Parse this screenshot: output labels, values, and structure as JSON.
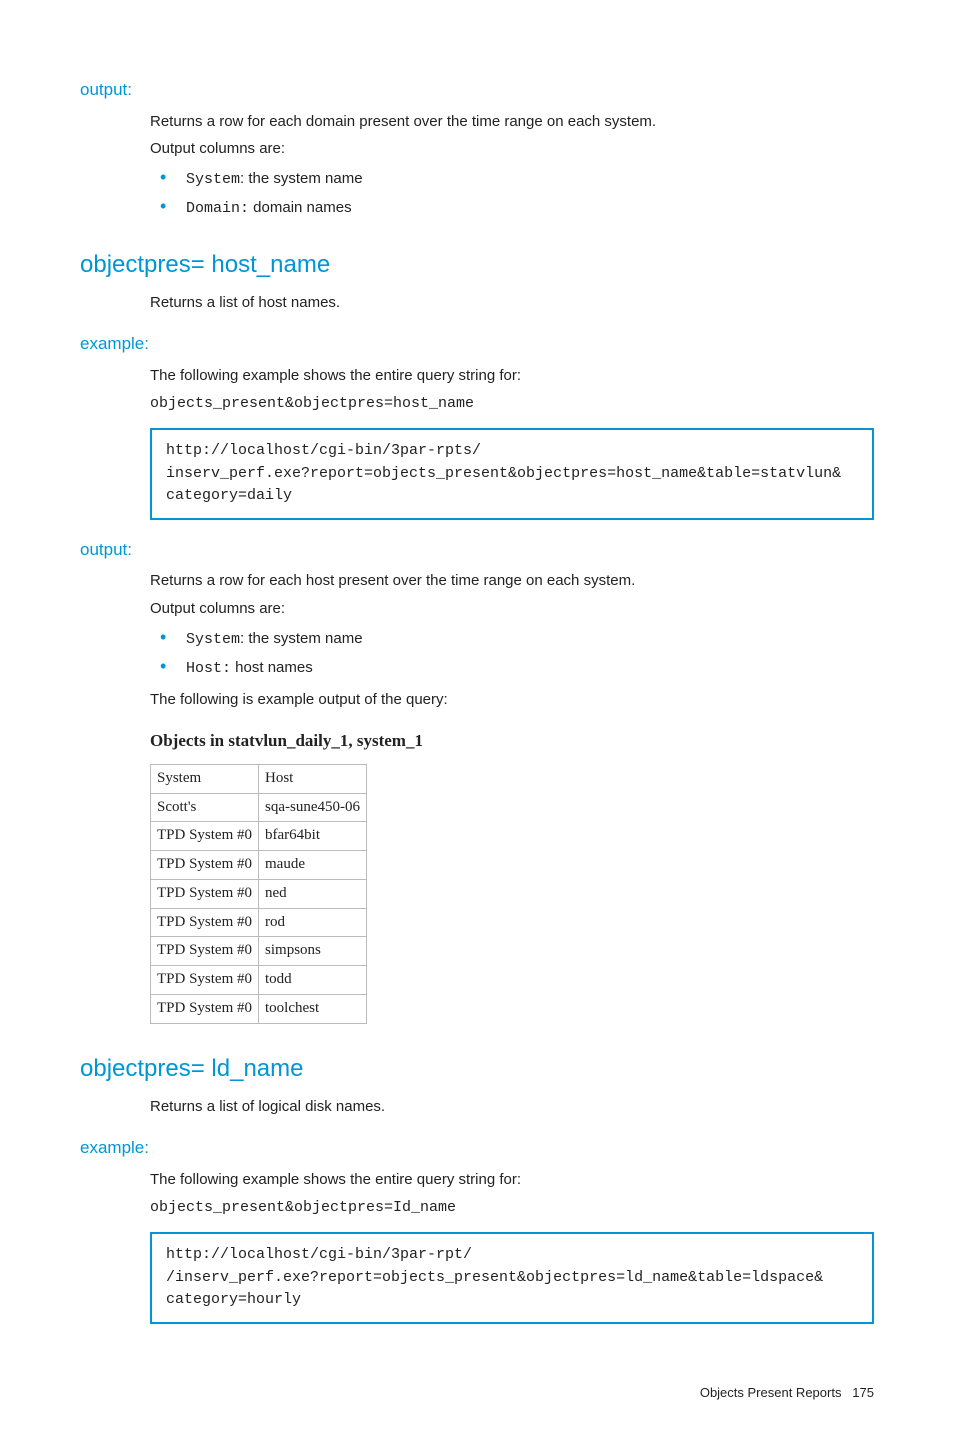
{
  "section1": {
    "label": "output:",
    "desc": "Returns a row for each domain present over the time range on each system.",
    "cols_intro": "Output columns are:",
    "bullets": [
      {
        "code": "System",
        "text": ": the system name"
      },
      {
        "code": "Domain:",
        "text": " domain names"
      }
    ]
  },
  "section2": {
    "heading": "objectpres= host_name",
    "desc": "Returns a list of host names."
  },
  "section3": {
    "label": "example:",
    "desc": "The following example shows the entire query string for:",
    "code_line": "objects_present&objectpres=host_name",
    "code_box": "http://localhost/cgi-bin/3par-rpts/\ninserv_perf.exe?report=objects_present&objectpres=host_name&table=statvlun&\ncategory=daily"
  },
  "section4": {
    "label": "output:",
    "desc": "Returns a row for each host present over the time range on each system.",
    "cols_intro": "Output columns are:",
    "bullets": [
      {
        "code": "System",
        "text": ": the system name"
      },
      {
        "code": "Host:",
        "text": " host names"
      }
    ],
    "after": "The following is example output of the query:",
    "table_title": "Objects in statvlun_daily_1, system_1",
    "columns": [
      "System",
      "Host"
    ],
    "rows": [
      [
        "Scott's",
        "sqa-sune450-06"
      ],
      [
        "TPD System #0",
        "bfar64bit"
      ],
      [
        "TPD System #0",
        "maude"
      ],
      [
        "TPD System #0",
        "ned"
      ],
      [
        "TPD System #0",
        "rod"
      ],
      [
        "TPD System #0",
        "simpsons"
      ],
      [
        "TPD System #0",
        "todd"
      ],
      [
        "TPD System #0",
        "toolchest"
      ]
    ]
  },
  "section5": {
    "heading": "objectpres= ld_name",
    "desc": "Returns a list of logical disk names."
  },
  "section6": {
    "label": "example:",
    "desc": "The following example shows the entire query string for:",
    "code_line": "objects_present&objectpres=Id_name",
    "code_box": "http://localhost/cgi-bin/3par-rpt/\n/inserv_perf.exe?report=objects_present&objectpres=ld_name&table=ldspace&\ncategory=hourly"
  },
  "footer": {
    "text": "Objects Present Reports",
    "page": "175"
  }
}
